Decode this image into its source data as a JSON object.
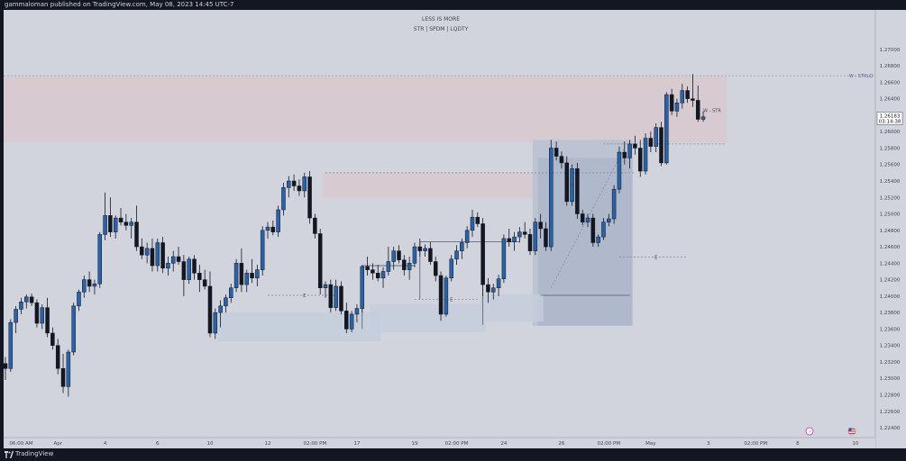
{
  "header": {
    "published_text": "gammaloman published on TradingView.com, May 08, 2023 14:45 UTC-7"
  },
  "footer": {
    "brand": "TradingView"
  },
  "chart_data": {
    "type": "candlestick",
    "title": "LESS IS MORE",
    "subtitle": "STR | SPDM | LQDTY",
    "ylim": [
      1.2228,
      1.2748
    ],
    "y_ticks": [
      "1.27000",
      "1.26800",
      "1.26600",
      "1.26400",
      "1.26200",
      "1.26000",
      "1.25800",
      "1.25600",
      "1.25400",
      "1.25200",
      "1.25000",
      "1.24800",
      "1.24600",
      "1.24400",
      "1.24200",
      "1.24000",
      "1.23800",
      "1.23600",
      "1.23400",
      "1.23200",
      "1.23000",
      "1.22800",
      "1.22600",
      "1.22400"
    ],
    "x_ticks": [
      {
        "label": "06:00 AM",
        "i": 3
      },
      {
        "label": "Apr",
        "i": 10
      },
      {
        "label": "4",
        "i": 19
      },
      {
        "label": "6",
        "i": 29
      },
      {
        "label": "10",
        "i": 39
      },
      {
        "label": "12",
        "i": 50
      },
      {
        "label": "02:00 PM",
        "i": 59
      },
      {
        "label": "17",
        "i": 67
      },
      {
        "label": "19",
        "i": 78
      },
      {
        "label": "02:00 PM",
        "i": 86
      },
      {
        "label": "24",
        "i": 95
      },
      {
        "label": "26",
        "i": 106
      },
      {
        "label": "02:00 PM",
        "i": 115
      },
      {
        "label": "May",
        "i": 123
      },
      {
        "label": "3",
        "i": 134
      },
      {
        "label": "02:00 PM",
        "i": 143
      },
      {
        "label": "8",
        "i": 151
      },
      {
        "label": "10",
        "i": 162
      }
    ],
    "current_price": {
      "value": "1.26183",
      "countdown": "03:14:38",
      "y": 1.26183
    },
    "annotations": [
      {
        "text": "W - STRLQ",
        "y": 1.2668
      },
      {
        "text": "W - STR",
        "y": 1.2626
      },
      {
        "text": "4",
        "y": 1.2535
      },
      {
        "text": "E",
        "y": 1.2401
      },
      {
        "text": "E",
        "y": 1.2396
      },
      {
        "text": "E",
        "y": 1.24475
      }
    ],
    "zones": [
      {
        "i0": 0,
        "i1": 137,
        "y0": 1.2667,
        "y1": 1.2587,
        "color": "#d8c9cf"
      },
      {
        "i0": 61,
        "i1": 109,
        "y0": 1.255,
        "y1": 1.2519,
        "color": "#d8c9cf"
      },
      {
        "i0": 101,
        "i1": 119,
        "y0": 1.259,
        "y1": 1.2364,
        "color": "#b8bfd1"
      },
      {
        "i0": 102,
        "i1": 119,
        "y0": 1.2568,
        "y1": 1.2364,
        "color": "#aeb6ca"
      },
      {
        "i0": 41,
        "i1": 71,
        "y0": 1.238,
        "y1": 1.2345,
        "color": "#c6ccdc"
      },
      {
        "i0": 70,
        "i1": 91,
        "y0": 1.239,
        "y1": 1.2356,
        "color": "#c6ccdc"
      },
      {
        "i0": 91,
        "i1": 102,
        "y0": 1.2402,
        "y1": 1.2369,
        "color": "#c6ccdc"
      }
    ],
    "candles": [
      [
        1.2318,
        1.2326,
        1.2298,
        1.2312
      ],
      [
        1.2312,
        1.2372,
        1.2308,
        1.2368
      ],
      [
        1.2368,
        1.2388,
        1.2355,
        1.2384
      ],
      [
        1.2384,
        1.2398,
        1.2378,
        1.2393
      ],
      [
        1.2393,
        1.2402,
        1.2385,
        1.2399
      ],
      [
        1.2399,
        1.2403,
        1.2388,
        1.2392
      ],
      [
        1.2392,
        1.2396,
        1.2362,
        1.2367
      ],
      [
        1.2367,
        1.239,
        1.236,
        1.2386
      ],
      [
        1.2386,
        1.2398,
        1.235,
        1.2355
      ],
      [
        1.2355,
        1.2362,
        1.2335,
        1.234
      ],
      [
        1.234,
        1.2348,
        1.2305,
        1.2312
      ],
      [
        1.2312,
        1.233,
        1.2282,
        1.229
      ],
      [
        1.229,
        1.2335,
        1.2278,
        1.2332
      ],
      [
        1.2332,
        1.2392,
        1.2328,
        1.2388
      ],
      [
        1.2388,
        1.2408,
        1.2382,
        1.2405
      ],
      [
        1.2405,
        1.2425,
        1.2398,
        1.242
      ],
      [
        1.242,
        1.243,
        1.2405,
        1.2412
      ],
      [
        1.2412,
        1.242,
        1.2402,
        1.2415
      ],
      [
        1.2415,
        1.2478,
        1.241,
        1.2475
      ],
      [
        1.2475,
        1.2526,
        1.2468,
        1.2498
      ],
      [
        1.2498,
        1.252,
        1.2472,
        1.2478
      ],
      [
        1.2478,
        1.2498,
        1.247,
        1.2495
      ],
      [
        1.2495,
        1.2507,
        1.2486,
        1.249
      ],
      [
        1.249,
        1.25,
        1.248,
        1.2486
      ],
      [
        1.2486,
        1.2495,
        1.247,
        1.249
      ],
      [
        1.249,
        1.251,
        1.2455,
        1.246
      ],
      [
        1.246,
        1.247,
        1.2445,
        1.245
      ],
      [
        1.245,
        1.2465,
        1.244,
        1.2458
      ],
      [
        1.2458,
        1.247,
        1.243,
        1.2437
      ],
      [
        1.2437,
        1.247,
        1.243,
        1.2465
      ],
      [
        1.2465,
        1.2472,
        1.2428,
        1.2434
      ],
      [
        1.2434,
        1.2448,
        1.2425,
        1.244
      ],
      [
        1.244,
        1.2455,
        1.243,
        1.2448
      ],
      [
        1.2448,
        1.246,
        1.2438,
        1.2442
      ],
      [
        1.2442,
        1.245,
        1.24,
        1.242
      ],
      [
        1.242,
        1.2448,
        1.2415,
        1.2445
      ],
      [
        1.2445,
        1.245,
        1.242,
        1.2428
      ],
      [
        1.2428,
        1.2438,
        1.2405,
        1.242
      ],
      [
        1.242,
        1.2432,
        1.2408,
        1.2412
      ],
      [
        1.2412,
        1.243,
        1.235,
        1.2355
      ],
      [
        1.2355,
        1.2385,
        1.2348,
        1.238
      ],
      [
        1.238,
        1.2395,
        1.2362,
        1.2388
      ],
      [
        1.2388,
        1.2402,
        1.238,
        1.2398
      ],
      [
        1.2398,
        1.2415,
        1.2392,
        1.241
      ],
      [
        1.241,
        1.2445,
        1.2405,
        1.244
      ],
      [
        1.244,
        1.2458,
        1.2405,
        1.2414
      ],
      [
        1.2414,
        1.2432,
        1.2405,
        1.2428
      ],
      [
        1.2428,
        1.2445,
        1.2416,
        1.2422
      ],
      [
        1.2422,
        1.2438,
        1.2412,
        1.2432
      ],
      [
        1.2432,
        1.2485,
        1.2425,
        1.248
      ],
      [
        1.248,
        1.249,
        1.247,
        1.2484
      ],
      [
        1.2484,
        1.2492,
        1.2474,
        1.2478
      ],
      [
        1.2478,
        1.251,
        1.2472,
        1.2505
      ],
      [
        1.2505,
        1.2538,
        1.2498,
        1.2532
      ],
      [
        1.2532,
        1.2546,
        1.252,
        1.254
      ],
      [
        1.254,
        1.2548,
        1.2528,
        1.2534
      ],
      [
        1.2534,
        1.2542,
        1.2522,
        1.2528
      ],
      [
        1.2528,
        1.255,
        1.252,
        1.2545
      ],
      [
        1.2545,
        1.2552,
        1.2488,
        1.2495
      ],
      [
        1.2495,
        1.25,
        1.247,
        1.2476
      ],
      [
        1.2476,
        1.2482,
        1.2402,
        1.241
      ],
      [
        1.241,
        1.2418,
        1.2398,
        1.2414
      ],
      [
        1.2414,
        1.242,
        1.238,
        1.2386
      ],
      [
        1.2386,
        1.242,
        1.2382,
        1.2412
      ],
      [
        1.2412,
        1.2418,
        1.2378,
        1.2382
      ],
      [
        1.2382,
        1.2392,
        1.2355,
        1.236
      ],
      [
        1.236,
        1.2382,
        1.2356,
        1.2378
      ],
      [
        1.2378,
        1.239,
        1.2368,
        1.2385
      ],
      [
        1.2385,
        1.2438,
        1.238,
        1.2436
      ],
      [
        1.2436,
        1.2448,
        1.2425,
        1.2432
      ],
      [
        1.2432,
        1.244,
        1.242,
        1.2428
      ],
      [
        1.2428,
        1.2438,
        1.2418,
        1.2422
      ],
      [
        1.2422,
        1.2435,
        1.241,
        1.243
      ],
      [
        1.243,
        1.246,
        1.2425,
        1.2442
      ],
      [
        1.2442,
        1.246,
        1.2432,
        1.2455
      ],
      [
        1.2455,
        1.2462,
        1.244,
        1.2444
      ],
      [
        1.2444,
        1.245,
        1.2425,
        1.2432
      ],
      [
        1.2432,
        1.2448,
        1.242,
        1.244
      ],
      [
        1.244,
        1.2465,
        1.2435,
        1.246
      ],
      [
        1.246,
        1.247,
        1.2448,
        1.2455
      ],
      [
        1.2455,
        1.2463,
        1.2448,
        1.2458
      ],
      [
        1.2458,
        1.2466,
        1.2438,
        1.2442
      ],
      [
        1.2442,
        1.2448,
        1.2418,
        1.2425
      ],
      [
        1.2425,
        1.243,
        1.237,
        1.2378
      ],
      [
        1.2378,
        1.2425,
        1.2375,
        1.2422
      ],
      [
        1.2422,
        1.245,
        1.2418,
        1.2445
      ],
      [
        1.2445,
        1.2462,
        1.2438,
        1.2455
      ],
      [
        1.2455,
        1.247,
        1.2445,
        1.2465
      ],
      [
        1.2465,
        1.2485,
        1.2458,
        1.248
      ],
      [
        1.248,
        1.2505,
        1.2472,
        1.2496
      ],
      [
        1.2496,
        1.2502,
        1.2484,
        1.2488
      ],
      [
        1.2488,
        1.2495,
        1.24,
        1.2414
      ],
      [
        1.2414,
        1.2422,
        1.2392,
        1.2405
      ],
      [
        1.2405,
        1.2415,
        1.2396,
        1.241
      ],
      [
        1.241,
        1.2426,
        1.24,
        1.2421
      ],
      [
        1.2421,
        1.2475,
        1.2416,
        1.247
      ],
      [
        1.247,
        1.2482,
        1.246,
        1.2466
      ],
      [
        1.2466,
        1.2478,
        1.2455,
        1.2472
      ],
      [
        1.2472,
        1.2484,
        1.2465,
        1.2478
      ],
      [
        1.2478,
        1.249,
        1.247,
        1.2475
      ],
      [
        1.2475,
        1.2482,
        1.245,
        1.2455
      ],
      [
        1.2455,
        1.2495,
        1.245,
        1.249
      ],
      [
        1.249,
        1.25,
        1.247,
        1.2482
      ],
      [
        1.2482,
        1.249,
        1.2455,
        1.246
      ],
      [
        1.246,
        1.259,
        1.2455,
        1.258
      ],
      [
        1.258,
        1.2588,
        1.2565,
        1.257
      ],
      [
        1.257,
        1.2576,
        1.2555,
        1.2562
      ],
      [
        1.2562,
        1.257,
        1.251,
        1.2515
      ],
      [
        1.2515,
        1.256,
        1.251,
        1.2555
      ],
      [
        1.2555,
        1.2562,
        1.2494,
        1.25
      ],
      [
        1.25,
        1.2505,
        1.2486,
        1.249
      ],
      [
        1.249,
        1.25,
        1.2484,
        1.2495
      ],
      [
        1.2495,
        1.25,
        1.246,
        1.2465
      ],
      [
        1.2465,
        1.2475,
        1.246,
        1.2472
      ],
      [
        1.2472,
        1.2495,
        1.2468,
        1.249
      ],
      [
        1.249,
        1.25,
        1.2485,
        1.2494
      ],
      [
        1.2494,
        1.2535,
        1.2488,
        1.253
      ],
      [
        1.253,
        1.2582,
        1.2525,
        1.2575
      ],
      [
        1.2575,
        1.2588,
        1.256,
        1.2568
      ],
      [
        1.2568,
        1.259,
        1.2555,
        1.2585
      ],
      [
        1.2585,
        1.2595,
        1.2572,
        1.258
      ],
      [
        1.258,
        1.259,
        1.2545,
        1.2552
      ],
      [
        1.2552,
        1.2598,
        1.2548,
        1.2592
      ],
      [
        1.2592,
        1.26,
        1.2575,
        1.2582
      ],
      [
        1.2582,
        1.261,
        1.2575,
        1.2605
      ],
      [
        1.2605,
        1.2612,
        1.2558,
        1.2562
      ],
      [
        1.2562,
        1.2648,
        1.256,
        1.2645
      ],
      [
        1.2645,
        1.2652,
        1.262,
        1.2625
      ],
      [
        1.2625,
        1.264,
        1.2618,
        1.2635
      ],
      [
        1.2635,
        1.2658,
        1.2628,
        1.265
      ],
      [
        1.265,
        1.2655,
        1.2635,
        1.264
      ],
      [
        1.264,
        1.267,
        1.263,
        1.2638
      ],
      [
        1.2638,
        1.2656,
        1.2612,
        1.2615
      ],
      [
        1.2615,
        1.2625,
        1.2612,
        1.2618
      ]
    ]
  }
}
